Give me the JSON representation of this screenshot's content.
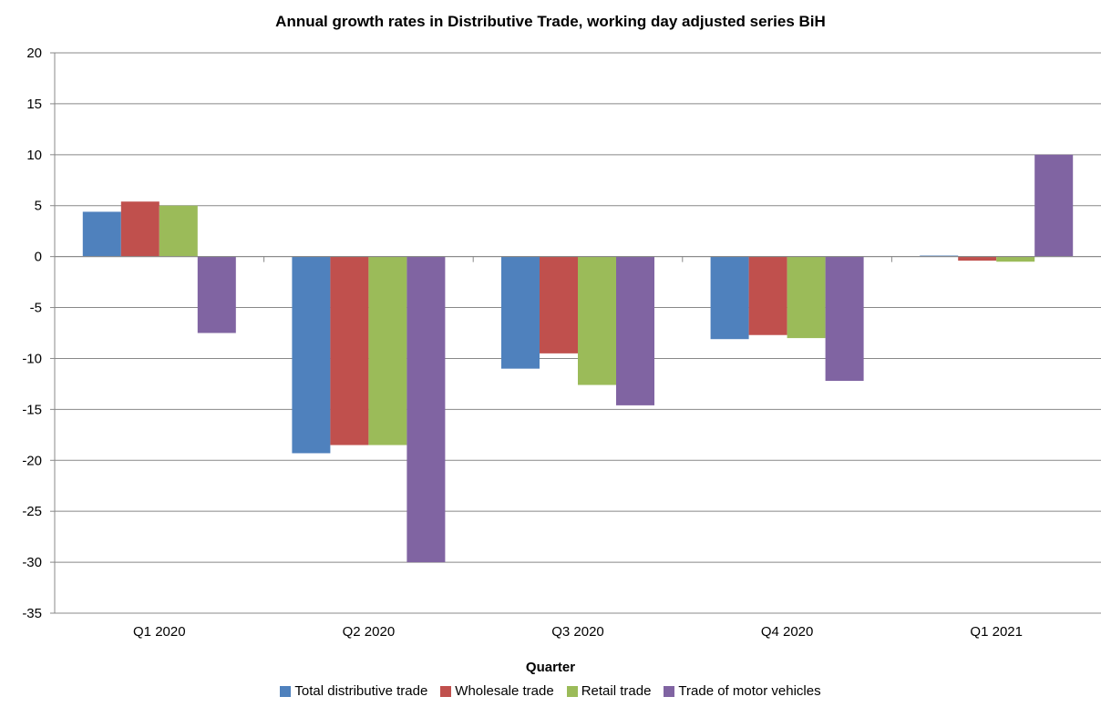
{
  "chart_data": {
    "type": "bar",
    "title": "Annual growth rates in Distributive Trade, working day adjusted series BiH",
    "xlabel": "Quarter",
    "ylabel": "",
    "categories": [
      "Q1 2020",
      "Q2 2020",
      "Q3 2020",
      "Q4 2020",
      "Q1 2021"
    ],
    "ylim": [
      -35,
      20
    ],
    "yticks": [
      20,
      15,
      10,
      5,
      0,
      -5,
      -10,
      -15,
      -20,
      -25,
      -30,
      -35
    ],
    "grid": true,
    "legend_position": "bottom",
    "series": [
      {
        "name": "Total distributive trade",
        "color": "#4F81BD",
        "values": [
          4.4,
          -19.3,
          -11.0,
          -8.1,
          0.1
        ]
      },
      {
        "name": "Wholesale trade",
        "color": "#C0504D",
        "values": [
          5.4,
          -18.5,
          -9.5,
          -7.7,
          -0.4
        ]
      },
      {
        "name": "Retail trade",
        "color": "#9BBB59",
        "values": [
          5.0,
          -18.5,
          -12.6,
          -8.0,
          -0.5
        ]
      },
      {
        "name": "Trade of motor vehicles",
        "color": "#8064A2",
        "values": [
          -7.5,
          -30.0,
          -14.6,
          -12.2,
          10.0
        ]
      }
    ]
  }
}
